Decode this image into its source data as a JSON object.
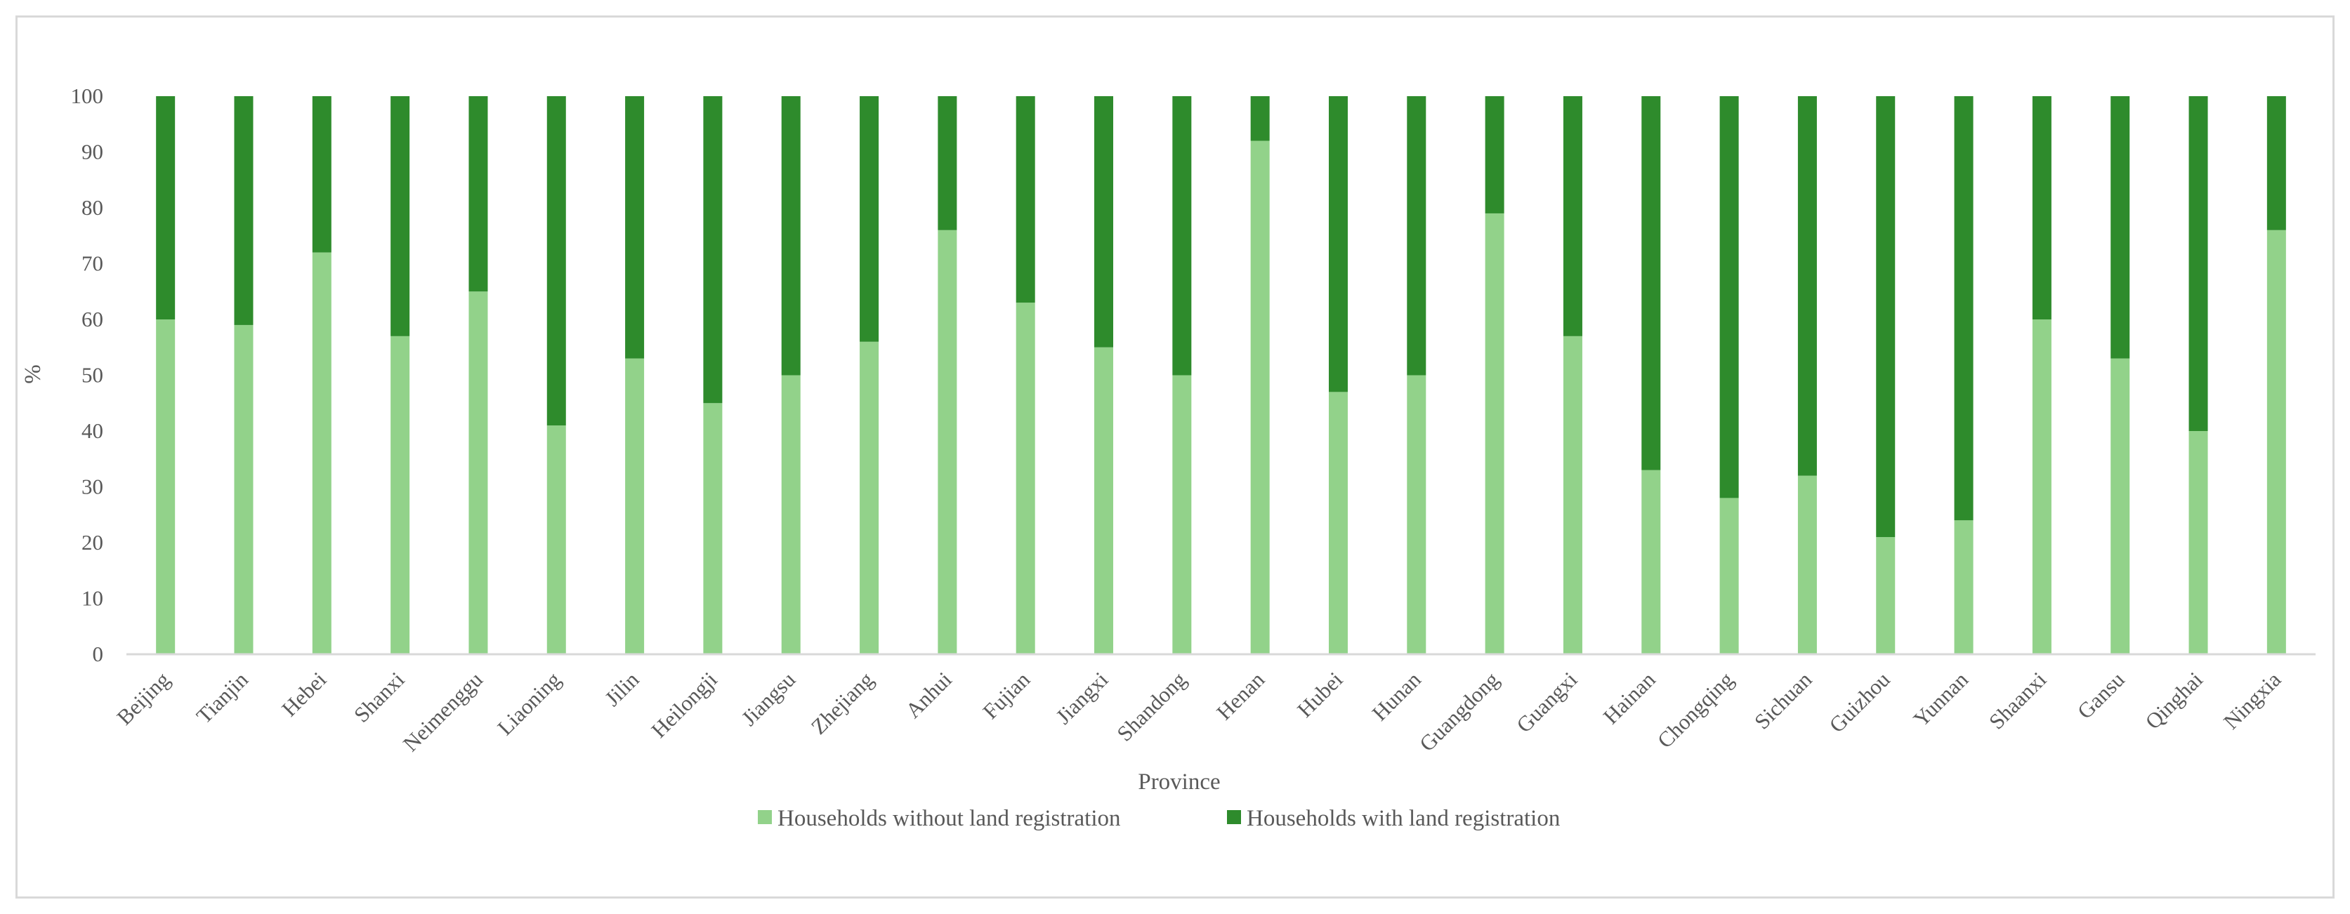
{
  "chart_data": {
    "type": "bar",
    "stacked": true,
    "title": "",
    "xlabel": "Province",
    "ylabel": "%",
    "ylim": [
      0,
      100
    ],
    "yticks": [
      0,
      10,
      20,
      30,
      40,
      50,
      60,
      70,
      80,
      90,
      100
    ],
    "grid": false,
    "legend_position": "bottom",
    "categories": [
      "Beijing",
      "Tianjin",
      "Hebei",
      "Shanxi",
      "Neimenggu",
      "Liaoning",
      "Jilin",
      "Heilongji",
      "Jiangsu",
      "Zhejiang",
      "Anhui",
      "Fujian",
      "Jiangxi",
      "Shandong",
      "Henan",
      "Hubei",
      "Hunan",
      "Guangdong",
      "Guangxi",
      "Hainan",
      "Chongqing",
      "Sichuan",
      "Guizhou",
      "Yunnan",
      "Shaanxi",
      "Gansu",
      "Qinghai",
      "Ningxia"
    ],
    "series": [
      {
        "name": "Households without land registration",
        "color": "#92d28a",
        "values": [
          60,
          59,
          72,
          57,
          65,
          41,
          53,
          45,
          50,
          56,
          76,
          63,
          55,
          50,
          92,
          47,
          50,
          79,
          57,
          33,
          28,
          32,
          21,
          24,
          60,
          53,
          40,
          76
        ]
      },
      {
        "name": "Households with land registration",
        "color": "#2e8b2c",
        "values": [
          40,
          41,
          28,
          43,
          35,
          59,
          47,
          55,
          50,
          44,
          24,
          37,
          45,
          50,
          8,
          53,
          50,
          21,
          43,
          67,
          72,
          68,
          79,
          76,
          40,
          47,
          60,
          24
        ]
      }
    ]
  }
}
